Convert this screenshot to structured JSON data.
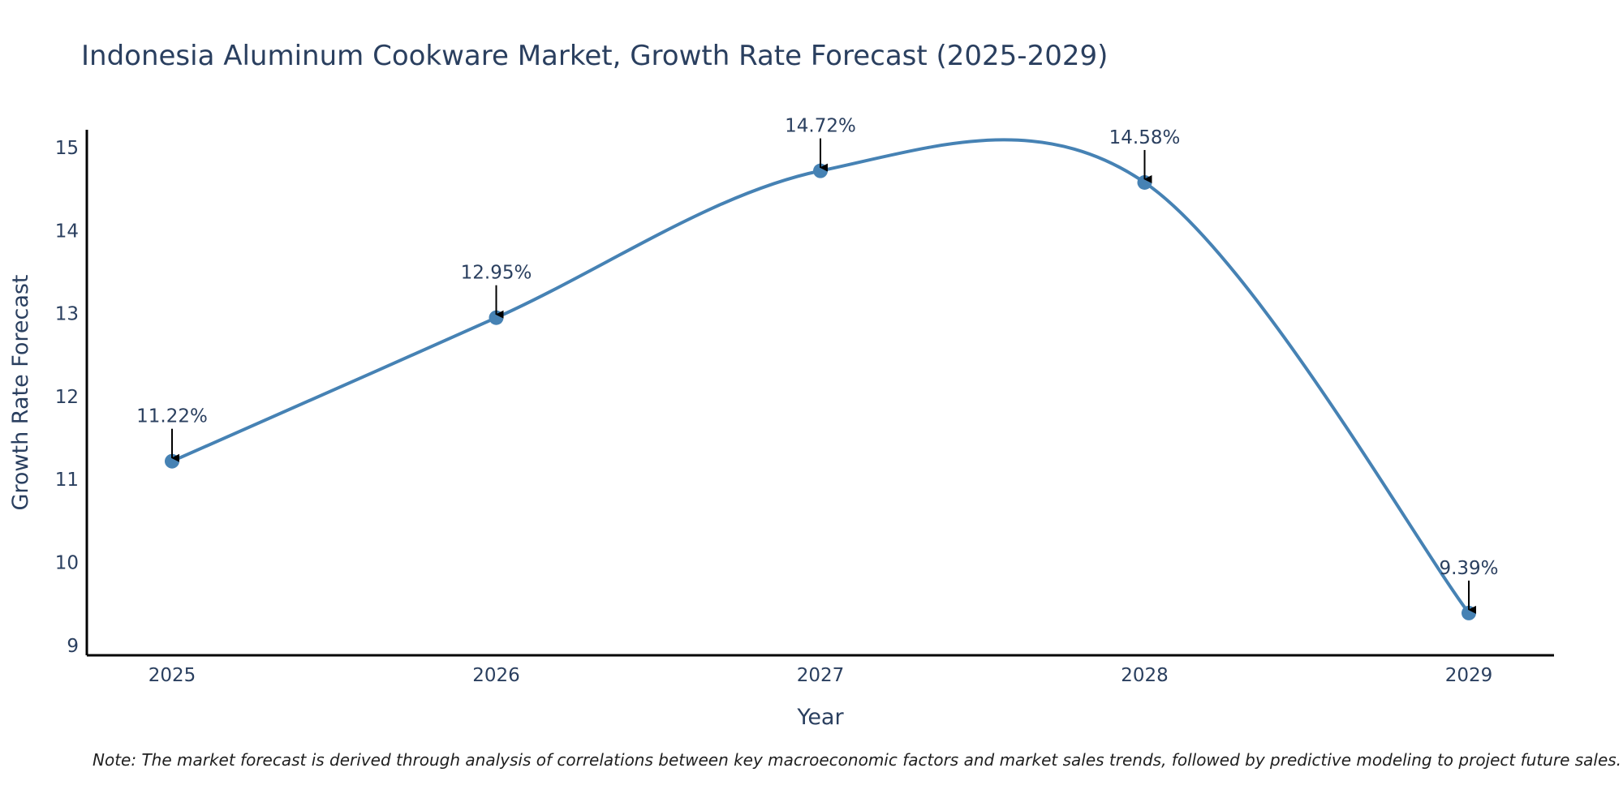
{
  "chart_data": {
    "type": "line",
    "title": "Indonesia Aluminum Cookware Market, Growth Rate Forecast (2025-2029)",
    "xlabel": "Year",
    "ylabel": "Growth Rate Forecast",
    "categories": [
      "2025",
      "2026",
      "2027",
      "2028",
      "2029"
    ],
    "values": [
      11.22,
      12.95,
      14.72,
      14.58,
      9.39
    ],
    "data_labels": [
      "11.22%",
      "12.95%",
      "14.72%",
      "14.58%",
      "9.39%"
    ],
    "yticks": [
      "9",
      "10",
      "11",
      "12",
      "13",
      "14",
      "15"
    ],
    "ylim": [
      8.8,
      15.2
    ],
    "line_shape": "spline",
    "grid": false,
    "legend": "none",
    "line_color": "#4682b4",
    "note": "Note: The market forecast is derived through analysis of correlations between key macroeconomic factors and market sales trends, followed by predictive modeling to project future sales."
  }
}
